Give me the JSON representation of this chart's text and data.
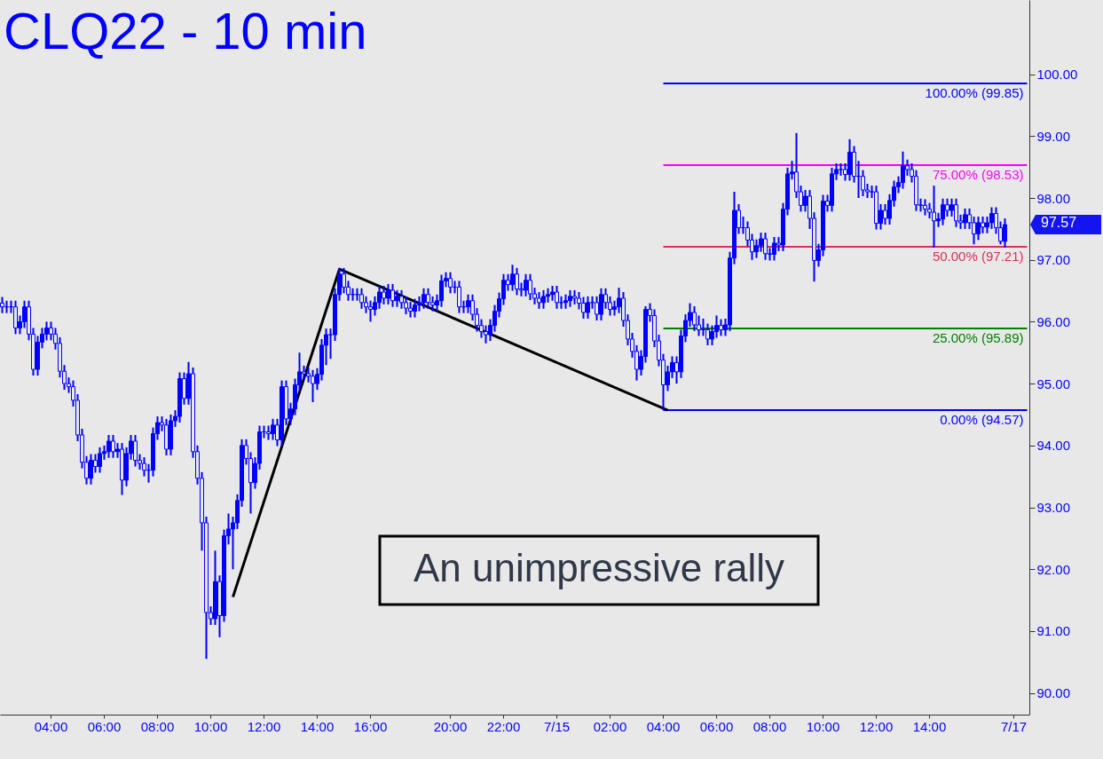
{
  "chart_data": {
    "type": "candlestick",
    "title": "CLQ22 - 10 min",
    "color": "#0000ff",
    "categories": [
      null,
      null,
      null,
      null,
      null,
      null,
      null,
      null,
      null,
      null,
      null,
      "04:00",
      null,
      null,
      null,
      null,
      null,
      null,
      null,
      null,
      null,
      null,
      null,
      "06:00",
      null,
      null,
      null,
      null,
      null,
      null,
      null,
      null,
      null,
      null,
      null,
      "08:00",
      null,
      null,
      null,
      null,
      null,
      null,
      null,
      null,
      null,
      null,
      null,
      "10:00",
      null,
      null,
      null,
      null,
      null,
      null,
      null,
      null,
      null,
      null,
      null,
      "12:00",
      null,
      null,
      null,
      null,
      null,
      null,
      null,
      null,
      null,
      null,
      null,
      "14:00",
      null,
      null,
      null,
      null,
      null,
      null,
      null,
      null,
      null,
      null,
      null,
      "16:00",
      null,
      null,
      null,
      null,
      null,
      null,
      null,
      null,
      null,
      null,
      null,
      null,
      null,
      null,
      null,
      null,
      null,
      "20:00",
      null,
      null,
      null,
      null,
      null,
      null,
      null,
      null,
      null,
      null,
      null,
      "22:00",
      null,
      null,
      null,
      null,
      null,
      null,
      null,
      null,
      null,
      null,
      null,
      "7/15",
      null,
      null,
      null,
      null,
      null,
      null,
      null,
      null,
      null,
      null,
      null,
      "02:00",
      null,
      null,
      null,
      null,
      null,
      null,
      null,
      null,
      null,
      null,
      null,
      "04:00",
      null,
      null,
      null,
      null,
      null,
      null,
      null,
      null,
      null,
      null,
      null,
      "06:00",
      null,
      null,
      null,
      null,
      null,
      null,
      null,
      null,
      null,
      null,
      null,
      "08:00",
      null,
      null,
      null,
      null,
      null,
      null,
      null,
      null,
      null,
      null,
      null,
      "10:00",
      null,
      null,
      null,
      null,
      null,
      null,
      null,
      null,
      null,
      null,
      null,
      "12:00",
      null,
      null,
      null,
      null,
      null,
      null,
      null,
      null,
      null,
      null,
      null,
      "14:00",
      null,
      null,
      null,
      null,
      null,
      null,
      null,
      null,
      null,
      null,
      null,
      null,
      null,
      null,
      null,
      null,
      null,
      null,
      "7/17",
      null,
      null,
      null
    ],
    "ohlc": [
      [
        96.3,
        96.4,
        96.14,
        96.24
      ],
      [
        96.24,
        96.34,
        96.14,
        96.24
      ],
      [
        96.24,
        96.34,
        96.14,
        96.24
      ],
      [
        96.24,
        96.34,
        95.8,
        95.9
      ],
      [
        95.9,
        96.1,
        95.8,
        96.0
      ],
      [
        96.0,
        96.34,
        95.9,
        96.24
      ],
      [
        96.24,
        96.34,
        95.7,
        95.8
      ],
      [
        95.8,
        95.9,
        95.13,
        95.23
      ],
      [
        95.23,
        95.77,
        95.13,
        95.67
      ],
      [
        95.67,
        95.9,
        95.57,
        95.8
      ],
      [
        95.8,
        96.0,
        95.7,
        95.9
      ],
      [
        95.9,
        96.0,
        95.7,
        95.8
      ],
      [
        95.8,
        95.9,
        95.55,
        95.65
      ],
      [
        95.65,
        95.75,
        95.1,
        95.2
      ],
      [
        95.2,
        95.3,
        94.9,
        95.0
      ],
      [
        95.0,
        95.1,
        94.85,
        94.95
      ],
      [
        94.95,
        95.05,
        94.63,
        94.73
      ],
      [
        94.73,
        94.83,
        94.07,
        94.17
      ],
      [
        94.17,
        94.27,
        93.63,
        93.73
      ],
      [
        93.73,
        93.83,
        93.37,
        93.47
      ],
      [
        93.47,
        93.86,
        93.37,
        93.76
      ],
      [
        93.76,
        93.86,
        93.56,
        93.66
      ],
      [
        93.66,
        93.97,
        93.56,
        93.87
      ],
      [
        93.87,
        94.0,
        93.77,
        93.9
      ],
      [
        93.9,
        94.17,
        93.8,
        94.07
      ],
      [
        94.07,
        94.17,
        93.8,
        93.9
      ],
      [
        93.9,
        94.04,
        93.8,
        93.94
      ],
      [
        93.94,
        94.04,
        93.2,
        93.44
      ],
      [
        93.44,
        93.97,
        93.34,
        93.87
      ],
      [
        93.87,
        94.17,
        93.77,
        94.07
      ],
      [
        94.07,
        94.17,
        93.66,
        93.76
      ],
      [
        93.76,
        93.86,
        93.61,
        93.71
      ],
      [
        93.71,
        93.81,
        93.5,
        93.6
      ],
      [
        93.6,
        93.7,
        93.4,
        93.6
      ],
      [
        93.6,
        94.29,
        93.5,
        94.19
      ],
      [
        94.19,
        94.47,
        94.09,
        94.37
      ],
      [
        94.37,
        94.47,
        94.23,
        94.33
      ],
      [
        94.33,
        94.43,
        93.84,
        93.94
      ],
      [
        93.94,
        94.5,
        93.84,
        94.4
      ],
      [
        94.4,
        94.57,
        94.3,
        94.47
      ],
      [
        94.47,
        95.18,
        94.37,
        95.08
      ],
      [
        95.08,
        95.18,
        94.66,
        94.76
      ],
      [
        94.76,
        95.35,
        94.66,
        95.16
      ],
      [
        95.16,
        95.26,
        93.8,
        93.9
      ],
      [
        93.9,
        94.0,
        93.37,
        93.47
      ],
      [
        93.47,
        93.57,
        92.3,
        92.75
      ],
      [
        92.75,
        92.85,
        90.55,
        91.3
      ],
      [
        91.3,
        91.4,
        91.1,
        91.2
      ],
      [
        91.2,
        92.3,
        91.1,
        91.8
      ],
      [
        91.8,
        91.9,
        90.9,
        91.25
      ],
      [
        91.25,
        92.64,
        91.15,
        92.54
      ],
      [
        92.54,
        92.9,
        92.4,
        92.65
      ],
      [
        92.65,
        92.85,
        92.0,
        92.75
      ],
      [
        92.75,
        93.21,
        92.65,
        93.11
      ],
      [
        93.11,
        94.1,
        93.01,
        94.0
      ],
      [
        94.0,
        94.1,
        93.69,
        93.79
      ],
      [
        93.79,
        93.89,
        92.9,
        93.4
      ],
      [
        93.4,
        93.81,
        93.3,
        93.71
      ],
      [
        93.71,
        94.32,
        93.61,
        94.22
      ],
      [
        94.22,
        94.32,
        94.12,
        94.22
      ],
      [
        94.22,
        94.32,
        94.09,
        94.19
      ],
      [
        94.19,
        94.43,
        94.09,
        94.33
      ],
      [
        94.33,
        94.43,
        93.99,
        94.09
      ],
      [
        94.09,
        95.05,
        93.99,
        94.95
      ],
      [
        94.95,
        95.05,
        94.33,
        94.43
      ],
      [
        94.43,
        94.69,
        94.33,
        94.59
      ],
      [
        94.59,
        95.08,
        94.49,
        94.98
      ],
      [
        94.98,
        95.5,
        94.88,
        95.19
      ],
      [
        95.19,
        95.29,
        95.06,
        95.16
      ],
      [
        95.16,
        95.26,
        95.02,
        95.12
      ],
      [
        95.12,
        95.22,
        94.7,
        95.0
      ],
      [
        95.0,
        95.25,
        94.9,
        95.15
      ],
      [
        95.15,
        95.72,
        95.05,
        95.62
      ],
      [
        95.62,
        95.89,
        95.3,
        95.79
      ],
      [
        95.79,
        95.89,
        95.4,
        95.79
      ],
      [
        95.79,
        96.54,
        95.69,
        96.44
      ],
      [
        96.44,
        96.87,
        96.34,
        96.77
      ],
      [
        96.77,
        96.87,
        96.46,
        96.56
      ],
      [
        96.56,
        96.66,
        96.34,
        96.44
      ],
      [
        96.44,
        96.54,
        96.34,
        96.44
      ],
      [
        96.44,
        96.54,
        96.34,
        96.44
      ],
      [
        96.44,
        96.54,
        96.21,
        96.31
      ],
      [
        96.31,
        96.41,
        96.14,
        96.24
      ],
      [
        96.24,
        96.34,
        96.0,
        96.2
      ],
      [
        96.2,
        96.41,
        96.1,
        96.31
      ],
      [
        96.31,
        96.58,
        96.21,
        96.48
      ],
      [
        96.48,
        96.58,
        96.28,
        96.38
      ],
      [
        96.38,
        96.61,
        96.28,
        96.51
      ],
      [
        96.51,
        96.61,
        96.24,
        96.34
      ],
      [
        96.34,
        96.51,
        96.24,
        96.41
      ],
      [
        96.41,
        96.51,
        96.21,
        96.31
      ],
      [
        96.31,
        96.41,
        96.12,
        96.22
      ],
      [
        96.22,
        96.32,
        96.07,
        96.17
      ],
      [
        96.17,
        96.37,
        96.07,
        96.27
      ],
      [
        96.27,
        96.41,
        96.17,
        96.31
      ],
      [
        96.31,
        96.54,
        96.21,
        96.44
      ],
      [
        96.44,
        96.54,
        96.21,
        96.31
      ],
      [
        96.31,
        96.41,
        96.17,
        96.27
      ],
      [
        96.27,
        96.44,
        96.17,
        96.34
      ],
      [
        96.34,
        96.76,
        96.24,
        96.66
      ],
      [
        96.66,
        96.8,
        96.56,
        96.7
      ],
      [
        96.7,
        96.8,
        96.46,
        96.56
      ],
      [
        96.56,
        96.66,
        96.46,
        96.56
      ],
      [
        96.56,
        96.66,
        96.14,
        96.24
      ],
      [
        96.24,
        96.34,
        96.14,
        96.24
      ],
      [
        96.24,
        96.44,
        96.14,
        96.34
      ],
      [
        96.34,
        96.44,
        96.02,
        96.12
      ],
      [
        96.12,
        96.22,
        95.84,
        95.94
      ],
      [
        95.94,
        96.04,
        95.74,
        95.84
      ],
      [
        95.84,
        95.94,
        95.65,
        95.79
      ],
      [
        95.79,
        96.04,
        95.69,
        95.94
      ],
      [
        95.94,
        96.27,
        95.84,
        96.17
      ],
      [
        96.17,
        96.47,
        96.07,
        96.37
      ],
      [
        96.37,
        96.77,
        96.27,
        96.67
      ],
      [
        96.67,
        96.77,
        96.5,
        96.6
      ],
      [
        96.6,
        96.92,
        96.5,
        96.77
      ],
      [
        96.77,
        96.87,
        96.43,
        96.53
      ],
      [
        96.53,
        96.63,
        96.41,
        96.51
      ],
      [
        96.51,
        96.77,
        96.41,
        96.67
      ],
      [
        96.67,
        96.77,
        96.35,
        96.45
      ],
      [
        96.45,
        96.55,
        96.28,
        96.38
      ],
      [
        96.38,
        96.48,
        96.21,
        96.31
      ],
      [
        96.31,
        96.51,
        96.21,
        96.41
      ],
      [
        96.41,
        96.54,
        96.31,
        96.44
      ],
      [
        96.44,
        96.58,
        96.34,
        96.48
      ],
      [
        96.48,
        96.58,
        96.21,
        96.31
      ],
      [
        96.31,
        96.41,
        96.21,
        96.31
      ],
      [
        96.31,
        96.44,
        96.21,
        96.34
      ],
      [
        96.34,
        96.51,
        96.24,
        96.41
      ],
      [
        96.41,
        96.51,
        96.28,
        96.38
      ],
      [
        96.38,
        96.48,
        96.2,
        96.3
      ],
      [
        96.3,
        96.4,
        96.05,
        96.15
      ],
      [
        96.15,
        96.41,
        96.05,
        96.31
      ],
      [
        96.31,
        96.41,
        96.21,
        96.31
      ],
      [
        96.31,
        96.41,
        96.02,
        96.12
      ],
      [
        96.12,
        96.54,
        96.02,
        96.44
      ],
      [
        96.44,
        96.54,
        96.21,
        96.31
      ],
      [
        96.31,
        96.41,
        96.1,
        96.2
      ],
      [
        96.2,
        96.34,
        96.1,
        96.24
      ],
      [
        96.24,
        96.55,
        96.14,
        96.38
      ],
      [
        96.38,
        96.48,
        95.92,
        96.02
      ],
      [
        96.02,
        96.12,
        95.62,
        95.72
      ],
      [
        95.72,
        95.82,
        95.42,
        95.52
      ],
      [
        95.52,
        95.62,
        95.05,
        95.23
      ],
      [
        95.23,
        95.54,
        95.13,
        95.44
      ],
      [
        95.44,
        96.25,
        95.34,
        96.2
      ],
      [
        96.2,
        96.3,
        96.0,
        96.1
      ],
      [
        96.1,
        96.2,
        95.59,
        95.69
      ],
      [
        95.69,
        95.79,
        95.28,
        95.38
      ],
      [
        95.38,
        95.48,
        94.57,
        94.98
      ],
      [
        94.98,
        95.29,
        94.88,
        95.19
      ],
      [
        95.19,
        95.44,
        95.09,
        95.34
      ],
      [
        95.34,
        95.44,
        95.0,
        95.19
      ],
      [
        95.19,
        95.87,
        95.09,
        95.77
      ],
      [
        95.77,
        96.12,
        95.67,
        96.02
      ],
      [
        96.02,
        96.3,
        95.92,
        96.15
      ],
      [
        96.15,
        96.25,
        95.85,
        95.95
      ],
      [
        95.95,
        96.1,
        95.77,
        95.87
      ],
      [
        95.87,
        96.05,
        95.77,
        95.87
      ],
      [
        95.87,
        95.97,
        95.62,
        95.72
      ],
      [
        95.72,
        95.94,
        95.62,
        95.84
      ],
      [
        95.84,
        96.1,
        95.74,
        95.94
      ],
      [
        95.94,
        96.04,
        95.77,
        95.87
      ],
      [
        95.87,
        96.05,
        95.77,
        95.95
      ],
      [
        95.95,
        97.13,
        95.85,
        97.03
      ],
      [
        97.03,
        98.1,
        96.93,
        97.8
      ],
      [
        97.8,
        97.9,
        97.42,
        97.52
      ],
      [
        97.52,
        97.7,
        97.42,
        97.52
      ],
      [
        97.52,
        97.62,
        97.22,
        97.32
      ],
      [
        97.32,
        97.42,
        97.0,
        97.13
      ],
      [
        97.13,
        97.33,
        97.03,
        97.23
      ],
      [
        97.23,
        97.44,
        97.13,
        97.34
      ],
      [
        97.34,
        97.44,
        97.0,
        97.1
      ],
      [
        97.1,
        97.19,
        96.99,
        97.09
      ],
      [
        97.09,
        97.37,
        96.99,
        97.27
      ],
      [
        97.27,
        97.37,
        97.14,
        97.24
      ],
      [
        97.24,
        97.92,
        97.14,
        97.82
      ],
      [
        97.82,
        98.49,
        97.72,
        98.39
      ],
      [
        98.39,
        98.6,
        98.3,
        98.42
      ],
      [
        98.42,
        99.05,
        98.0,
        98.1
      ],
      [
        98.1,
        98.2,
        97.78,
        97.88
      ],
      [
        97.88,
        98.13,
        97.78,
        98.03
      ],
      [
        98.03,
        98.13,
        97.5,
        97.67
      ],
      [
        97.67,
        97.77,
        96.65,
        96.99
      ],
      [
        96.99,
        97.26,
        96.89,
        97.16
      ],
      [
        97.16,
        98.05,
        97.06,
        97.95
      ],
      [
        97.95,
        98.05,
        97.78,
        97.88
      ],
      [
        97.88,
        98.49,
        97.78,
        98.39
      ],
      [
        98.39,
        98.56,
        98.29,
        98.46
      ],
      [
        98.46,
        98.56,
        98.36,
        98.46
      ],
      [
        98.46,
        98.56,
        98.28,
        98.38
      ],
      [
        98.38,
        98.95,
        98.28,
        98.74
      ],
      [
        98.74,
        98.84,
        98.25,
        98.35
      ],
      [
        98.35,
        98.6,
        98.0,
        98.35
      ],
      [
        98.35,
        98.45,
        98.03,
        98.13
      ],
      [
        98.13,
        98.23,
        98.0,
        98.1
      ],
      [
        98.1,
        98.2,
        98.0,
        98.1
      ],
      [
        98.1,
        98.2,
        97.49,
        97.59
      ],
      [
        97.59,
        97.9,
        97.49,
        97.8
      ],
      [
        97.8,
        97.9,
        97.57,
        97.67
      ],
      [
        97.67,
        98.06,
        97.57,
        97.96
      ],
      [
        97.96,
        98.28,
        97.86,
        98.18
      ],
      [
        98.18,
        98.35,
        98.08,
        98.25
      ],
      [
        98.25,
        98.75,
        98.15,
        98.52
      ],
      [
        98.52,
        98.62,
        98.36,
        98.46
      ],
      [
        98.46,
        98.56,
        98.25,
        98.35
      ],
      [
        98.35,
        98.45,
        97.79,
        97.89
      ],
      [
        97.89,
        97.99,
        97.78,
        97.88
      ],
      [
        97.88,
        97.98,
        97.72,
        97.82
      ],
      [
        97.82,
        97.92,
        97.67,
        97.77
      ],
      [
        97.77,
        98.2,
        97.2,
        97.63
      ],
      [
        97.63,
        97.76,
        97.53,
        97.66
      ],
      [
        97.66,
        97.99,
        97.56,
        97.89
      ],
      [
        97.89,
        97.99,
        97.7,
        97.8
      ],
      [
        97.8,
        97.99,
        97.7,
        97.89
      ],
      [
        97.89,
        97.99,
        97.53,
        97.63
      ],
      [
        97.63,
        97.73,
        97.5,
        97.6
      ],
      [
        97.6,
        97.83,
        97.5,
        97.73
      ],
      [
        97.73,
        97.83,
        97.5,
        97.6
      ],
      [
        97.6,
        97.7,
        97.25,
        97.42
      ],
      [
        97.42,
        97.7,
        97.32,
        97.6
      ],
      [
        97.6,
        97.7,
        97.43,
        97.53
      ],
      [
        97.53,
        97.7,
        97.43,
        97.6
      ],
      [
        97.6,
        97.85,
        97.5,
        97.75
      ],
      [
        97.75,
        97.85,
        97.42,
        97.52
      ],
      [
        97.52,
        97.62,
        97.25,
        97.3
      ],
      [
        97.3,
        97.67,
        97.2,
        97.57
      ],
      null,
      null,
      null,
      null,
      null
    ],
    "series": [
      {
        "type": "line",
        "color": "#000000",
        "values": [
          null,
          null,
          null,
          null,
          null,
          null,
          null,
          null,
          null,
          null,
          null,
          null,
          null,
          null,
          null,
          null,
          null,
          null,
          null,
          null,
          null,
          null,
          null,
          null,
          null,
          null,
          null,
          null,
          null,
          null,
          null,
          null,
          null,
          null,
          null,
          null,
          null,
          null,
          null,
          null,
          null,
          null,
          null,
          null,
          null,
          null,
          null,
          null,
          null,
          null,
          null,
          null,
          91.55,
          null,
          null,
          null,
          null,
          null,
          null,
          null,
          null,
          null,
          null,
          null,
          null,
          null,
          null,
          null,
          null,
          null,
          null,
          null,
          null,
          null,
          null,
          null,
          96.85,
          null,
          null,
          null,
          null,
          null,
          null,
          null,
          null,
          null,
          null,
          null,
          null,
          null,
          null,
          null,
          null,
          null,
          null,
          null,
          null,
          null,
          null,
          null,
          null,
          null,
          null,
          null,
          null,
          null,
          null,
          null,
          null,
          null,
          null,
          null,
          null,
          null,
          null,
          null,
          null,
          null,
          null,
          null,
          null,
          null,
          null,
          null,
          null,
          null,
          null,
          null,
          null,
          null,
          null,
          null,
          null,
          null,
          null,
          null,
          null,
          null,
          null,
          null,
          null,
          null,
          null,
          null,
          null,
          null,
          null,
          null,
          null,
          null,
          94.57,
          null,
          null,
          null,
          null,
          null,
          null,
          null,
          null,
          null,
          null,
          null,
          null,
          null,
          null,
          null,
          null,
          null,
          null,
          null,
          null,
          null,
          null,
          null,
          null,
          null,
          null,
          null,
          null,
          null,
          null,
          null,
          null,
          null,
          null,
          null,
          null,
          null,
          null,
          null,
          null,
          null,
          null,
          null,
          null,
          null,
          null,
          null,
          null,
          null,
          null,
          null,
          null,
          null,
          null,
          null,
          null,
          null,
          null,
          null,
          null,
          null,
          null,
          null,
          null,
          null,
          null,
          null,
          null,
          null,
          null,
          null,
          null,
          null,
          null,
          null,
          null,
          null,
          null,
          null,
          null,
          null
        ]
      }
    ],
    "ylim": [
      89.65,
      101.2
    ],
    "yticks": [
      {
        "value": 90,
        "label": "90.00"
      },
      {
        "value": 91,
        "label": "91.00"
      },
      {
        "value": 92,
        "label": "92.00"
      },
      {
        "value": 93,
        "label": "93.00"
      },
      {
        "value": 94,
        "label": "94.00"
      },
      {
        "value": 95,
        "label": "95.00"
      },
      {
        "value": 96,
        "label": "96.00"
      },
      {
        "value": 97,
        "label": "97.00"
      },
      {
        "value": 98,
        "label": "98.00"
      },
      {
        "value": 99,
        "label": "99.00"
      },
      {
        "value": 100,
        "label": "100.00"
      }
    ],
    "ref_lines": [
      {
        "axis": "y",
        "value": 99.85,
        "label": "100.00% (99.85)",
        "color": "#0000ff"
      },
      {
        "axis": "y",
        "value": 98.53,
        "label": "75.00% (98.53)",
        "color": "#ff00ff"
      },
      {
        "axis": "y",
        "value": 97.21,
        "label": "50.00% (97.21)",
        "color": "#dc2f55"
      },
      {
        "axis": "y",
        "value": 95.89,
        "label": "25.00% (95.89)",
        "color": "#008000"
      },
      {
        "axis": "y",
        "value": 94.57,
        "label": "0.00% (94.57)",
        "color": "#0000ff"
      }
    ],
    "annotations": [
      "An unimpressive rally",
      "97.57"
    ]
  }
}
